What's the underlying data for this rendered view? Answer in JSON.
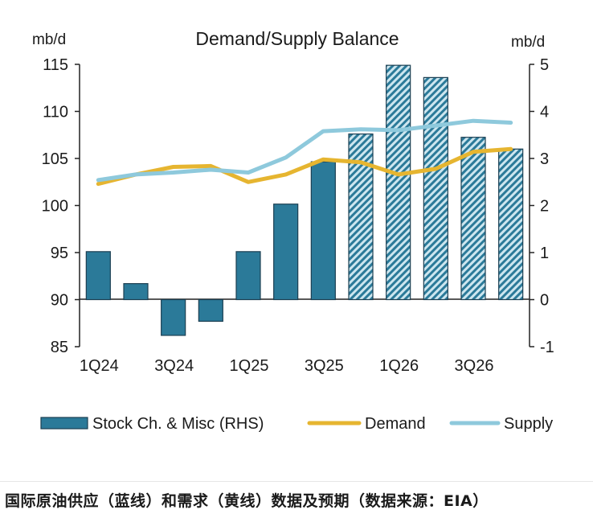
{
  "colors": {
    "bar": "#2b7a99",
    "bar_hatch_bg": "#cde6ef",
    "bar_edge": "#1c3f52",
    "demand": "#e6b530",
    "supply": "#8ec9dc",
    "axis": "#222222"
  },
  "chart_data": {
    "type": "bar+line",
    "title": "Demand/Supply Balance",
    "ylabel_left": "mb/d",
    "ylabel_right": "mb/d",
    "ylim_left": [
      85,
      115
    ],
    "ylim_right": [
      -1,
      5
    ],
    "yticks_left": [
      "115",
      "110",
      "105",
      "100",
      "95",
      "90",
      "85"
    ],
    "yticks_right": [
      "5",
      "4",
      "3",
      "2",
      "1",
      "0",
      "-1"
    ],
    "categories": [
      "1Q24",
      "2Q24",
      "3Q24",
      "4Q24",
      "1Q25",
      "2Q25",
      "3Q25",
      "4Q25",
      "1Q26",
      "2Q26",
      "3Q26",
      "4Q26"
    ],
    "xtick_labels": [
      "1Q24",
      "",
      "3Q24",
      "",
      "1Q25",
      "",
      "3Q25",
      "",
      "1Q26",
      "",
      "3Q26",
      ""
    ],
    "series": [
      {
        "name": "Stock Ch. & Misc (RHS)",
        "type": "bar",
        "axis": "right",
        "values": [
          1.02,
          0.34,
          -0.76,
          -0.46,
          1.02,
          2.03,
          2.93,
          3.52,
          4.98,
          4.72,
          3.45,
          3.2
        ],
        "forecast_from_index": 7
      },
      {
        "name": "Demand",
        "type": "line",
        "axis": "left",
        "values": [
          102.3,
          103.3,
          104.1,
          104.2,
          102.5,
          103.3,
          104.9,
          104.6,
          103.3,
          103.9,
          105.7,
          106.0
        ]
      },
      {
        "name": "Supply",
        "type": "line",
        "axis": "left",
        "values": [
          102.7,
          103.3,
          103.5,
          103.8,
          103.5,
          105.1,
          107.9,
          108.1,
          108.0,
          108.5,
          109.0,
          108.8
        ]
      }
    ],
    "grid": false,
    "legend_position": "bottom"
  },
  "caption": "国际原油供应（蓝线）和需求（黄线）数据及预期（数据来源：EIA）"
}
